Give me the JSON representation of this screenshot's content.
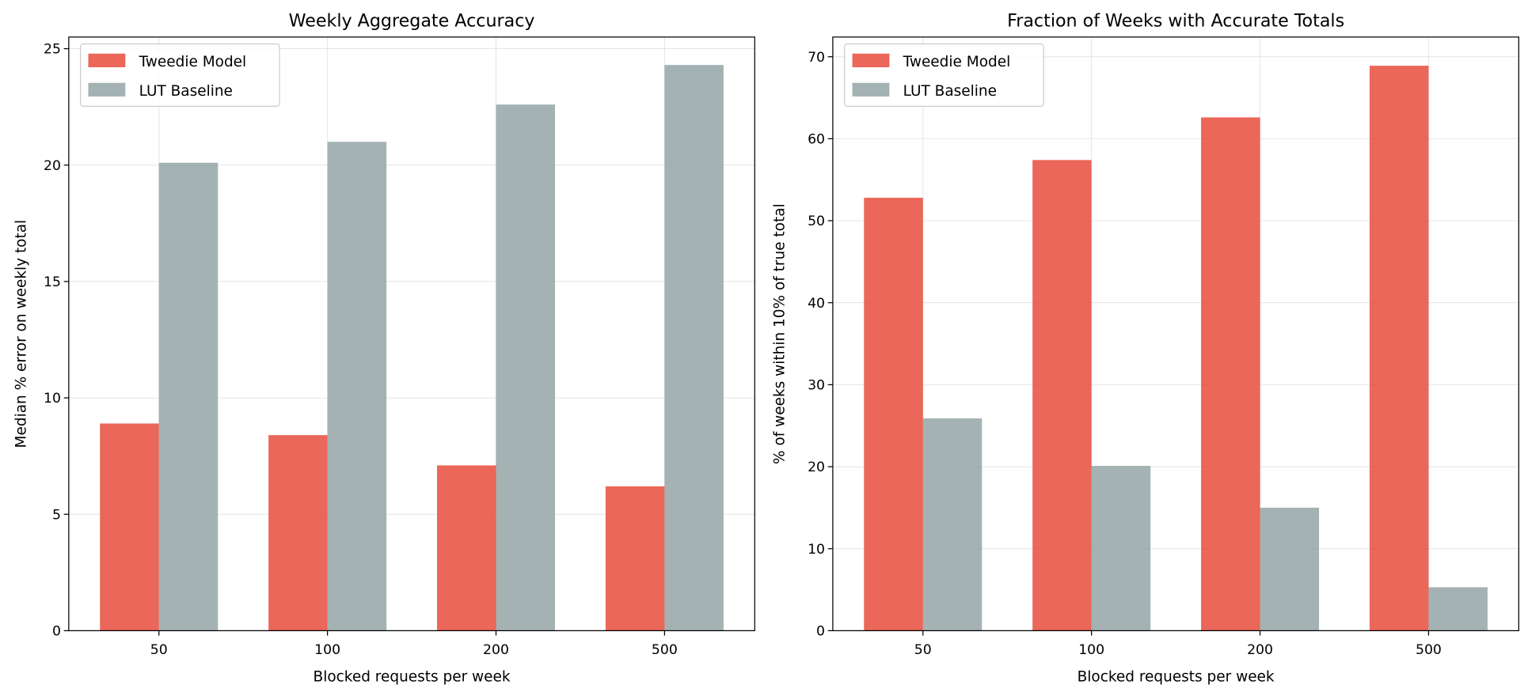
{
  "chart_data": [
    {
      "type": "bar",
      "title": "Weekly Aggregate Accuracy",
      "xlabel": "Blocked requests per week",
      "ylabel": "Median % error on weekly total",
      "categories": [
        "50",
        "100",
        "200",
        "500"
      ],
      "series": [
        {
          "name": "Tweedie Model",
          "values": [
            8.9,
            8.4,
            7.1,
            6.2
          ],
          "color": "#e74c3c"
        },
        {
          "name": "LUT Baseline",
          "values": [
            20.1,
            21.0,
            22.6,
            24.3
          ],
          "color": "#95a5a6"
        }
      ],
      "ylim": [
        0,
        25.5
      ],
      "yticks": [
        0,
        5,
        10,
        15,
        20,
        25
      ],
      "grid": true,
      "legend": "top-left"
    },
    {
      "type": "bar",
      "title": "Fraction of Weeks with Accurate Totals",
      "xlabel": "Blocked requests per week",
      "ylabel": "% of weeks within 10% of true total",
      "categories": [
        "50",
        "100",
        "200",
        "500"
      ],
      "series": [
        {
          "name": "Tweedie Model",
          "values": [
            52.8,
            57.4,
            62.6,
            68.9
          ],
          "color": "#e74c3c"
        },
        {
          "name": "LUT Baseline",
          "values": [
            25.9,
            20.1,
            15.0,
            5.3
          ],
          "color": "#95a5a6"
        }
      ],
      "ylim": [
        0,
        72.4
      ],
      "yticks": [
        0,
        10,
        20,
        30,
        40,
        50,
        60,
        70
      ],
      "grid": true,
      "legend": "top-left"
    }
  ]
}
